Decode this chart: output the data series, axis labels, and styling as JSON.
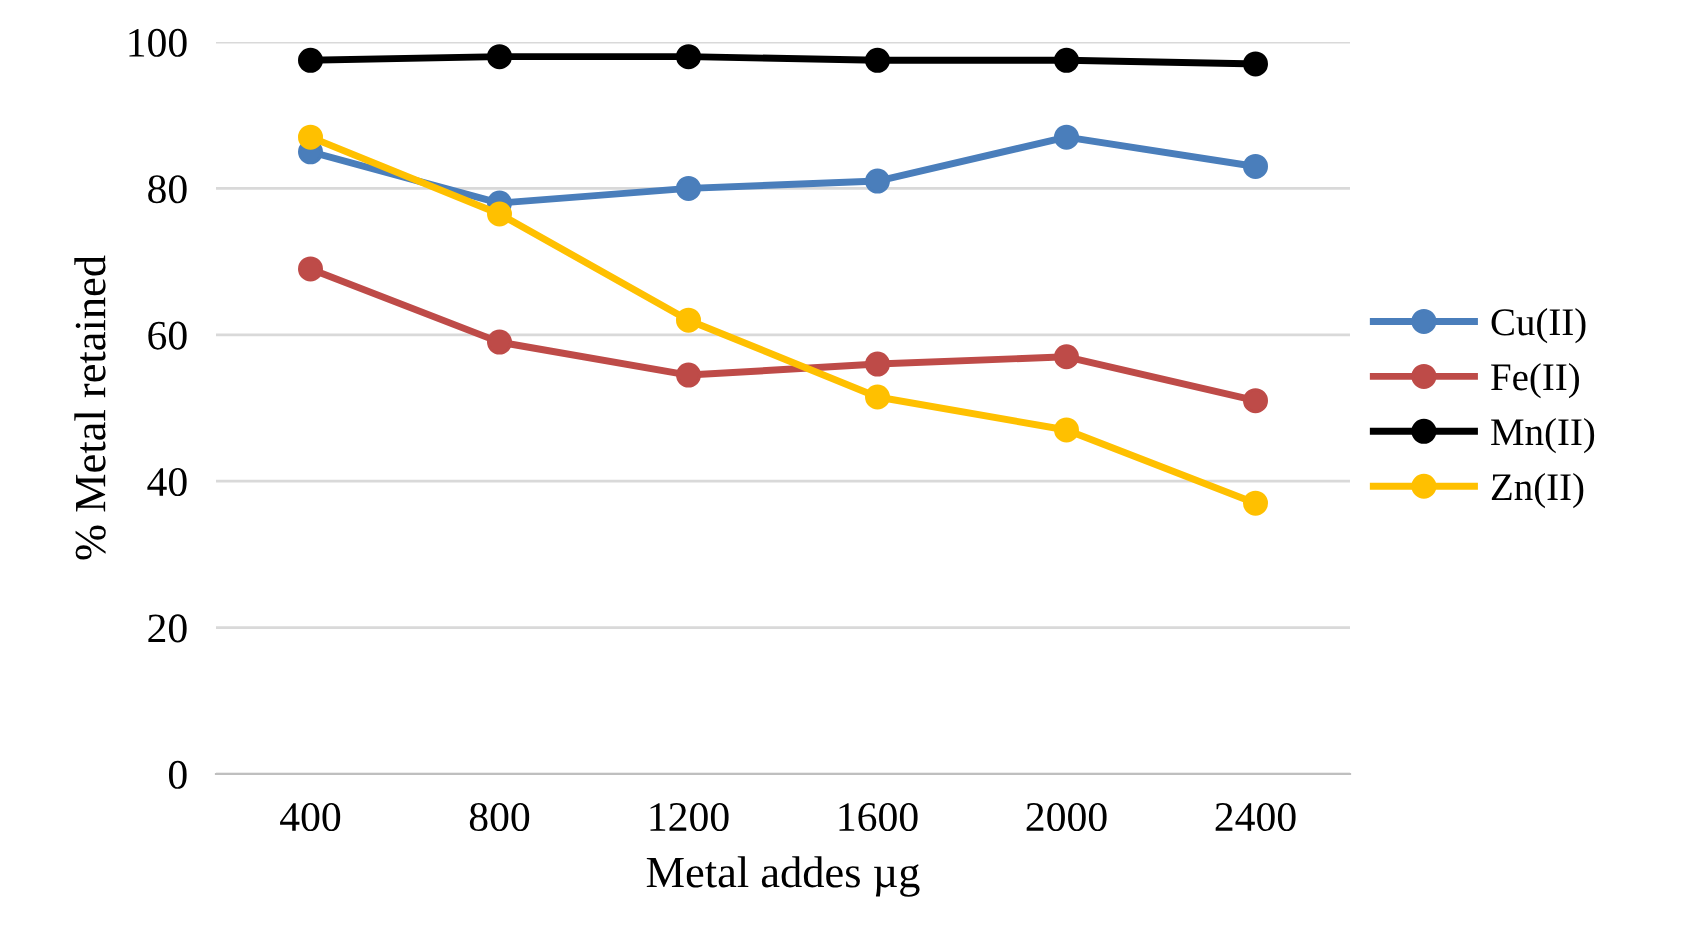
{
  "chart_data": {
    "type": "line",
    "xlabel": "Metal addes µg",
    "ylabel": "% Metal retained",
    "categories": [
      "400",
      "800",
      "1200",
      "1600",
      "2000",
      "2400"
    ],
    "series": [
      {
        "name": "Cu(II)",
        "color": "#4a7ebb",
        "values": [
          85,
          78,
          80,
          81,
          87,
          83
        ]
      },
      {
        "name": "Fe(II)",
        "color": "#be4b48",
        "values": [
          69,
          59,
          54.5,
          56,
          57,
          51
        ]
      },
      {
        "name": "Mn(II)",
        "color": "#000000",
        "values": [
          97.5,
          98,
          98,
          97.5,
          97.5,
          97
        ]
      },
      {
        "name": "Zn(II)",
        "color": "#ffc000",
        "values": [
          87,
          76.5,
          62,
          51.5,
          47,
          37
        ]
      }
    ],
    "ylim": [
      0,
      100
    ],
    "yticks": [
      0,
      20,
      40,
      60,
      80,
      100
    ],
    "grid": "y",
    "legend": "right",
    "marker": "circle",
    "line_style": "solid"
  }
}
